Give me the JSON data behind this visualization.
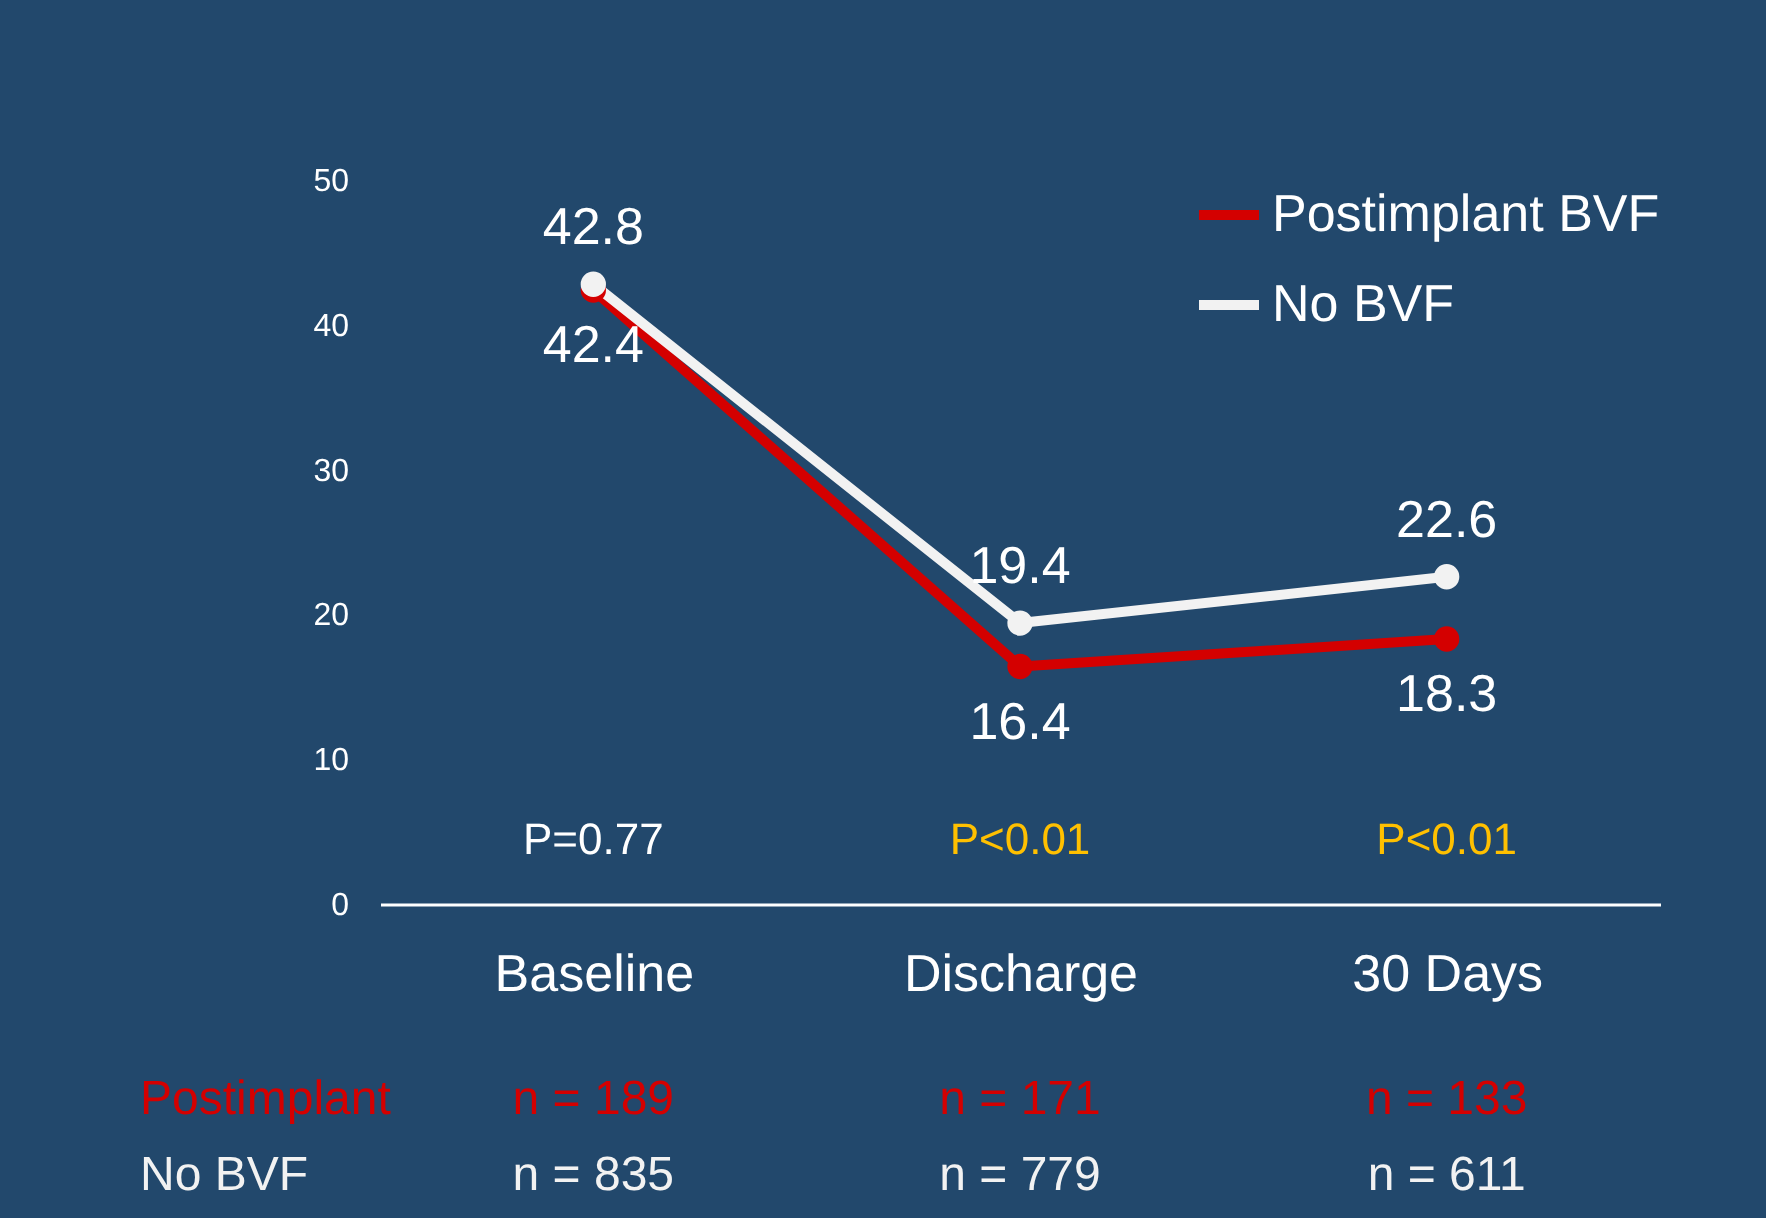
{
  "chart_data": {
    "type": "line",
    "categories": [
      "Baseline",
      "Discharge",
      "30 Days"
    ],
    "series": [
      {
        "name": "Postimplant BVF",
        "color": "#d40000",
        "values": [
          42.4,
          16.4,
          18.3
        ]
      },
      {
        "name": "No BVF",
        "color": "#f2f2f2",
        "values": [
          42.8,
          19.4,
          22.6
        ]
      }
    ],
    "ylim": [
      0,
      50
    ],
    "yticks": [
      0,
      10,
      20,
      30,
      40,
      50
    ],
    "grid": false,
    "legend": "top right",
    "marker": "circle",
    "line_style": "solid",
    "data_labels": true,
    "annotations": [
      "P=0.77",
      "P<0.01",
      "P<0.01",
      "Postimplant",
      "n = 189",
      "n = 171",
      "n = 133",
      "No BVF",
      "n = 835",
      "n = 779",
      "n = 611"
    ]
  }
}
